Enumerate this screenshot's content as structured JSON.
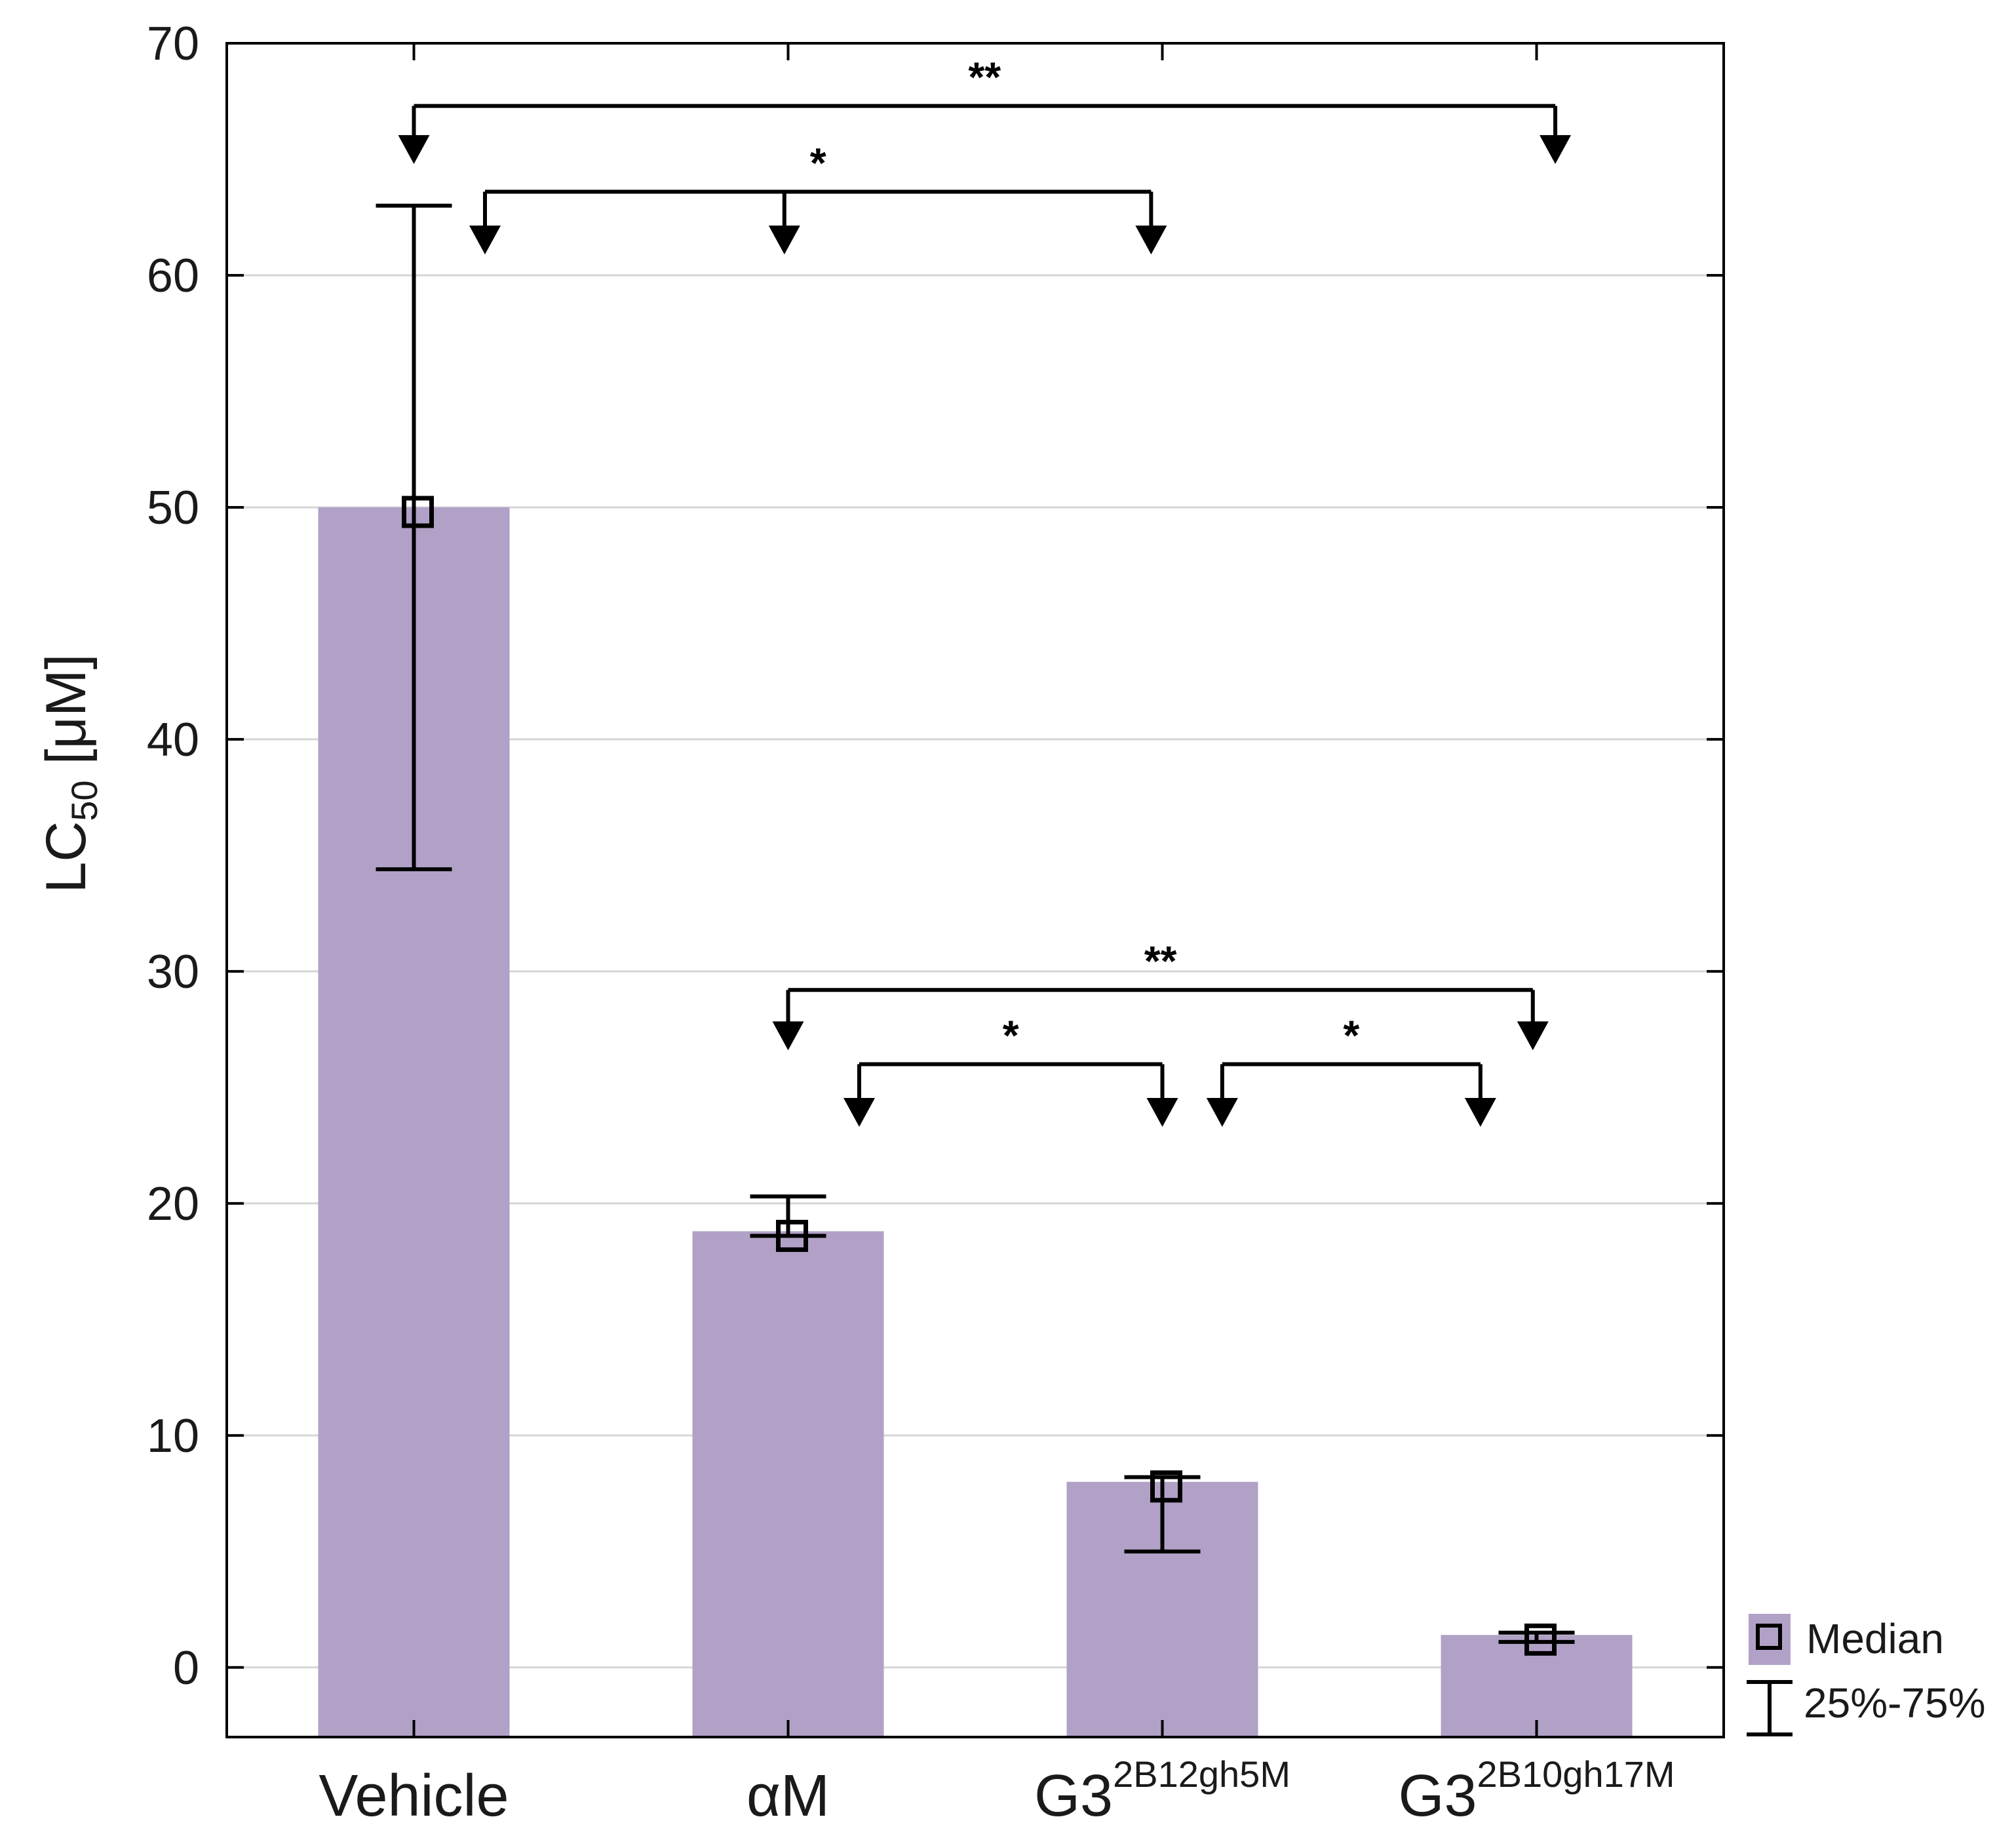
{
  "chart_data": {
    "type": "bar",
    "title": "",
    "xlabel": "",
    "ylabel": {
      "main": "LC",
      "subscript": "50",
      "unit": " [μM]"
    },
    "ylim": [
      -3,
      70
    ],
    "yticks": [
      "0",
      "10",
      "20",
      "30",
      "40",
      "50",
      "60",
      "70"
    ],
    "grid": true,
    "bar_color": "#b1a1c6",
    "categories": [
      {
        "name": "Vehicle",
        "base": "Vehicle",
        "sup": ""
      },
      {
        "name": "αM",
        "base": "αM",
        "sup": ""
      },
      {
        "name": "G3 2B12gh5M",
        "base": "G3",
        "sup": "2B12gh5M"
      },
      {
        "name": "G3 2B10gh17M",
        "base": "G3",
        "sup": "2B10gh17M"
      }
    ],
    "series": [
      {
        "name": "Median",
        "values": [
          50,
          18.8,
          8,
          1.4
        ]
      }
    ],
    "median_markers": [
      49.8,
      18.6,
      7.8,
      1.2
    ],
    "error_25_75": [
      {
        "low": 34.4,
        "high": 63
      },
      {
        "low": 18.6,
        "high": 20.3
      },
      {
        "low": 5,
        "high": 8.2
      },
      {
        "low": 1.1,
        "high": 1.5
      }
    ],
    "legend": {
      "position": "bottom-right outside",
      "entries": [
        {
          "label": "Median",
          "symbol": "bar-with-square"
        },
        {
          "label": "25%-75%",
          "symbol": "whisker"
        }
      ]
    },
    "significance": [
      {
        "label": "**",
        "bar_y": 67.3,
        "drops": [
          {
            "x": 0.0,
            "tip": 64.8
          },
          {
            "x": 3.05,
            "tip": 64.8
          }
        ]
      },
      {
        "label": "*",
        "bar_y": 63.6,
        "drops": [
          {
            "x": 0.19,
            "tip": 60.9
          },
          {
            "x": 0.99,
            "tip": 60.9
          },
          {
            "x": 1.97,
            "tip": 60.9
          }
        ]
      },
      {
        "label": "**",
        "bar_y": 29.2,
        "drops": [
          {
            "x": 1.0,
            "tip": 26.6
          },
          {
            "x": 2.99,
            "tip": 26.6
          }
        ]
      },
      {
        "label": "*",
        "bar_y": 26.0,
        "drops": [
          {
            "x": 1.19,
            "tip": 23.3
          },
          {
            "x": 2.0,
            "tip": 23.3
          }
        ]
      },
      {
        "label": "*",
        "bar_y": 26.0,
        "drops": [
          {
            "x": 2.16,
            "tip": 23.3
          },
          {
            "x": 2.85,
            "tip": 23.3
          }
        ]
      }
    ]
  }
}
